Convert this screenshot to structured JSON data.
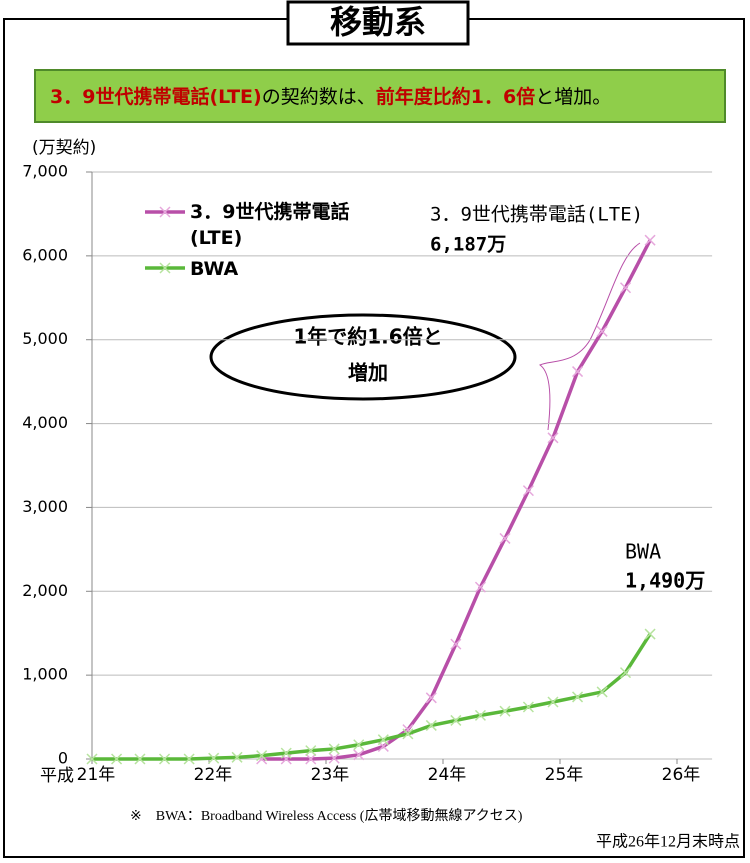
{
  "page_title": "移動系",
  "banner": [
    "3．9世代携帯電話(LTE)",
    "の契約数は、",
    "前年度比約1．6倍",
    "と増加。"
  ],
  "chart_data": {
    "type": "line",
    "y_label": "(万契約)",
    "x_prefix": "平成",
    "x": [
      21.0,
      21.21,
      21.41,
      21.62,
      21.83,
      22.04,
      22.24,
      22.45,
      22.66,
      22.87,
      23.07,
      23.28,
      23.49,
      23.7,
      23.9,
      24.11,
      24.32,
      24.53,
      24.73,
      24.94,
      25.15,
      25.36,
      25.56,
      25.77
    ],
    "series": [
      {
        "name": "3．9世代携帯電話(LTE)",
        "color": "#b84fa8",
        "marker_color": "#e6a8dc",
        "values": [
          null,
          null,
          null,
          null,
          null,
          null,
          null,
          0,
          0,
          0,
          10,
          50,
          150,
          350,
          730,
          1370,
          2050,
          2630,
          3200,
          3830,
          4620,
          5100,
          5620,
          6187
        ],
        "value_labels": [
          null,
          null,
          null,
          null,
          null,
          null,
          null,
          null,
          null,
          null,
          null,
          null,
          null,
          null,
          null,
          null,
          null,
          null,
          null,
          null,
          null,
          null,
          null,
          "6,187万"
        ]
      },
      {
        "name": "BWA",
        "color": "#5ab83a",
        "marker_color": "#b6e39e",
        "values": [
          0,
          0,
          0,
          0,
          0,
          10,
          20,
          40,
          70,
          100,
          120,
          170,
          230,
          300,
          400,
          460,
          520,
          570,
          620,
          680,
          740,
          800,
          1030,
          1490
        ],
        "value_labels": [
          null,
          null,
          null,
          null,
          null,
          null,
          null,
          null,
          null,
          null,
          null,
          null,
          null,
          null,
          null,
          null,
          null,
          null,
          null,
          null,
          null,
          null,
          null,
          "1,490万"
        ]
      }
    ],
    "xlim": [
      21,
      26.3
    ],
    "xticks": [
      {
        "value": 21,
        "label": "21年"
      },
      {
        "value": 22,
        "label": "22年"
      },
      {
        "value": 23,
        "label": "23年"
      },
      {
        "value": 24,
        "label": "24年"
      },
      {
        "value": 25,
        "label": "25年"
      },
      {
        "value": 26,
        "label": "26年"
      }
    ],
    "ylim": [
      0,
      7000
    ],
    "yticks": [
      0,
      {
        "value": 1000,
        "label": "1,000"
      },
      {
        "value": 2000,
        "label": "2,000"
      },
      {
        "value": 3000,
        "label": "3,000"
      },
      {
        "value": 4000,
        "label": "4,000"
      },
      {
        "value": 5000,
        "label": "5,000"
      },
      {
        "value": 6000,
        "label": "6,000"
      },
      {
        "value": 7000,
        "label": "7,000"
      }
    ],
    "grid": true,
    "annotation": [
      "1年で約1.6倍と",
      "増加"
    ]
  },
  "footnote": "※　BWA：Broadband Wireless Access (広帯域移動無線アクセス)",
  "as_of": "平成26年12月末時点"
}
